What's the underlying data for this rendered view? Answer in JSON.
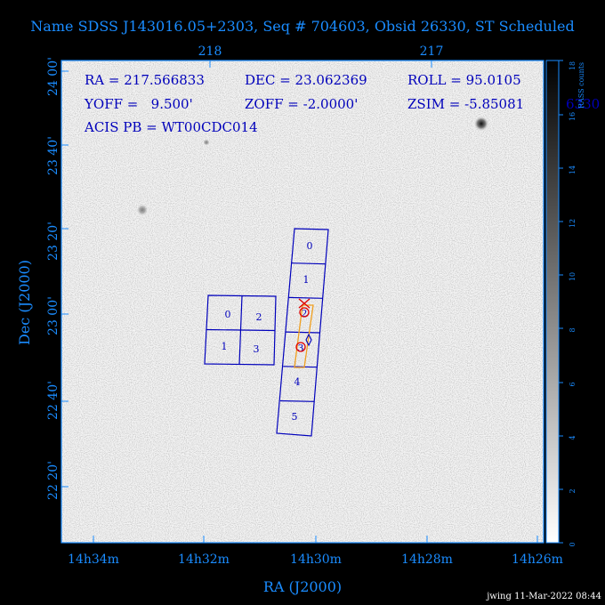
{
  "title": "Name SDSS J143016.05+2303, Seq # 704603, Obsid 26330, ST Scheduled",
  "colors": {
    "axis": "#1a8cff",
    "overlay": "#0000bb",
    "red": "#e00000",
    "orange": "#f0a020",
    "background": "#000000"
  },
  "info": {
    "ra": "RA = 217.566833",
    "dec": "DEC = 23.062369",
    "roll": "ROLL = 95.0105",
    "yoff": "YOFF =   9.500'",
    "zoff": "ZOFF = -2.0000'",
    "zsim": "ZSIM = -5.85081",
    "acis_pb": "ACIS PB = WT00CDC014",
    "clipped_right": "6330"
  },
  "axes": {
    "xlabel": "RA (J2000)",
    "ylabel": "Dec (J2000)",
    "x_ticks": [
      "14h34m",
      "14h32m",
      "14h30m",
      "14h28m",
      "14h26m"
    ],
    "top_ticks": [
      "218",
      "217"
    ],
    "y_ticks": [
      "24 00'",
      "23 40'",
      "23 20'",
      "23 00'",
      "22 40'",
      "22 20'"
    ]
  },
  "colorbar": {
    "label": "RASS counts",
    "ticks": [
      "0",
      "2",
      "4",
      "6",
      "8",
      "10",
      "12",
      "14",
      "16",
      "18"
    ]
  },
  "chips": {
    "s_array": [
      "0",
      "1",
      "2",
      "3",
      "4",
      "5"
    ],
    "i_array": [
      "0",
      "2",
      "1",
      "3"
    ]
  },
  "footer": "jwing 11-Mar-2022 08:44"
}
